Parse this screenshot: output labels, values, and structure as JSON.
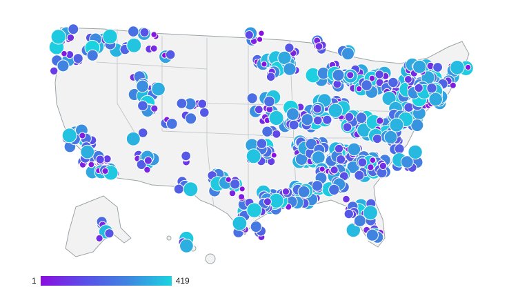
{
  "map": {
    "type": "bubble-map",
    "region": "United States",
    "land_color": "#f2f2f2",
    "border_color": "#9aa3a8",
    "bubble_stroke": "#ffffff"
  },
  "legend": {
    "min_label": "1",
    "max_label": "419",
    "gradient": [
      "#8b0ee0",
      "#5a4ee8",
      "#3f86e0",
      "#1ad4e0"
    ]
  },
  "chart_data": {
    "type": "scatter",
    "title": "",
    "value_range": [
      1,
      419
    ],
    "size_encodes_value": true,
    "color_encodes_value": true,
    "approx_bubble_count": 420
  }
}
